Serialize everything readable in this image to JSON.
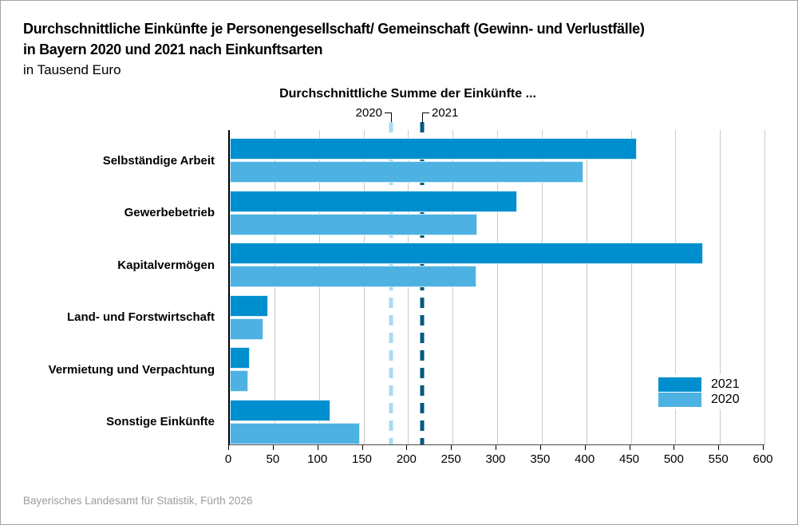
{
  "title": {
    "line1": "Durchschnittliche Einkünfte je Personengesellschaft/ Gemeinschaft (Gewinn- und Verlustfälle)",
    "line2": "in Bayern 2020 und 2021 nach Einkunftsarten",
    "subtitle": "in Tausend Euro"
  },
  "annotation": {
    "header": "Durchschnittliche Summe der Einkünfte ...",
    "label_2020": "2020",
    "label_2021": "2021"
  },
  "legend": {
    "items": [
      {
        "label": "2021",
        "color": "#008FCE"
      },
      {
        "label": "2020",
        "color": "#4DB2E2"
      }
    ]
  },
  "footer": "Bayerisches Landesamt für Statistik, Fürth 2026",
  "colors": {
    "bar_2021": "#008FCE",
    "bar_2020": "#4DB2E2",
    "refline_2020": "#A9DBF2",
    "refline_2021": "#00587E",
    "gridline": "#cacaca",
    "footer_text": "#9c9c9c"
  },
  "chart_data": {
    "type": "bar",
    "orientation": "horizontal",
    "title": "Durchschnittliche Einkünfte je Personengesellschaft/ Gemeinschaft (Gewinn- und Verlustfälle) in Bayern 2020 und 2021 nach Einkunftsarten",
    "unit": "in Tausend Euro",
    "categories": [
      "Selbständige Arbeit",
      "Gewerbebetrieb",
      "Kapitalvermögen",
      "Land- und Forstwirtschaft",
      "Vermietung und Verpachtung",
      "Sonstige Einkünfte"
    ],
    "series": [
      {
        "name": "2021",
        "color": "#008FCE",
        "values": [
          457,
          322,
          531,
          43,
          22,
          113
        ]
      },
      {
        "name": "2020",
        "color": "#4DB2E2",
        "values": [
          397,
          278,
          277,
          38,
          21,
          146
        ]
      }
    ],
    "reference_lines": [
      {
        "label": "2020",
        "value": 183,
        "color": "#A9DBF2",
        "style": "dashed"
      },
      {
        "label": "2021",
        "value": 218,
        "color": "#00587E",
        "style": "dashed"
      }
    ],
    "xlim": [
      0,
      600
    ],
    "xticks": [
      0,
      50,
      100,
      150,
      200,
      250,
      300,
      350,
      400,
      450,
      500,
      550,
      600
    ],
    "grid": true,
    "legend_position": "right-inside"
  }
}
